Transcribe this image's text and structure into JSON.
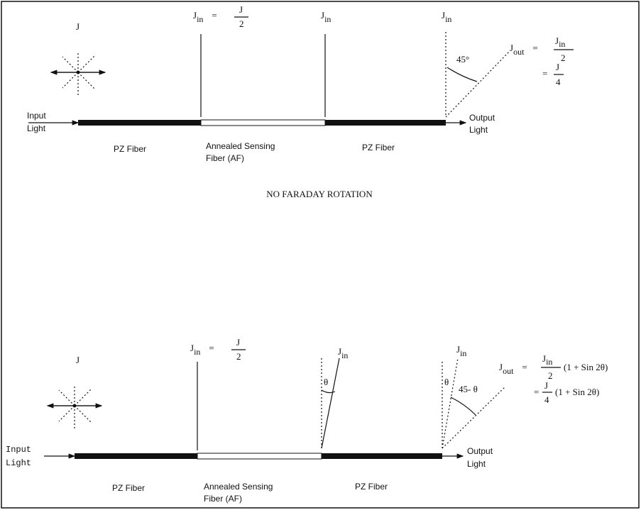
{
  "top": {
    "source": "J",
    "jin_half": [
      "J",
      "in",
      "=",
      "J",
      "2"
    ],
    "jin_a": [
      "J",
      "in"
    ],
    "jin_b": [
      "J",
      "in"
    ],
    "angle": "45°",
    "jout": [
      "J",
      "out",
      "=",
      "J",
      "in",
      "2"
    ],
    "jout_2": [
      "=",
      "J",
      "4"
    ],
    "input": [
      "Input",
      "Light"
    ],
    "output": [
      "Output",
      "Light"
    ],
    "pz_1": "PZ Fiber",
    "annealed": [
      "Annealed Sensing",
      "Fiber (AF)"
    ],
    "pz_2": "PZ Fiber",
    "caption": "NO FARADAY ROTATION"
  },
  "bottom": {
    "source": "J",
    "jin_half": [
      "J",
      "in",
      "=",
      "J",
      "2"
    ],
    "jin_a": [
      "J",
      "in"
    ],
    "theta_a": "θ",
    "jin_b": [
      "J",
      "in"
    ],
    "theta_b": "θ",
    "angle": "45- θ",
    "jout": [
      "J",
      "out",
      "=",
      "J",
      "in",
      "2",
      "(1 + Sin 2θ)"
    ],
    "jout_2": [
      "=",
      "J",
      "4",
      "(1 + Sin 2θ)"
    ],
    "input": [
      "Input",
      "Light"
    ],
    "output": [
      "Output",
      "Light"
    ],
    "pz_1": "PZ Fiber",
    "annealed": [
      "Annealed Sensing",
      "Fiber (AF)"
    ],
    "pz_2": "PZ Fiber"
  }
}
